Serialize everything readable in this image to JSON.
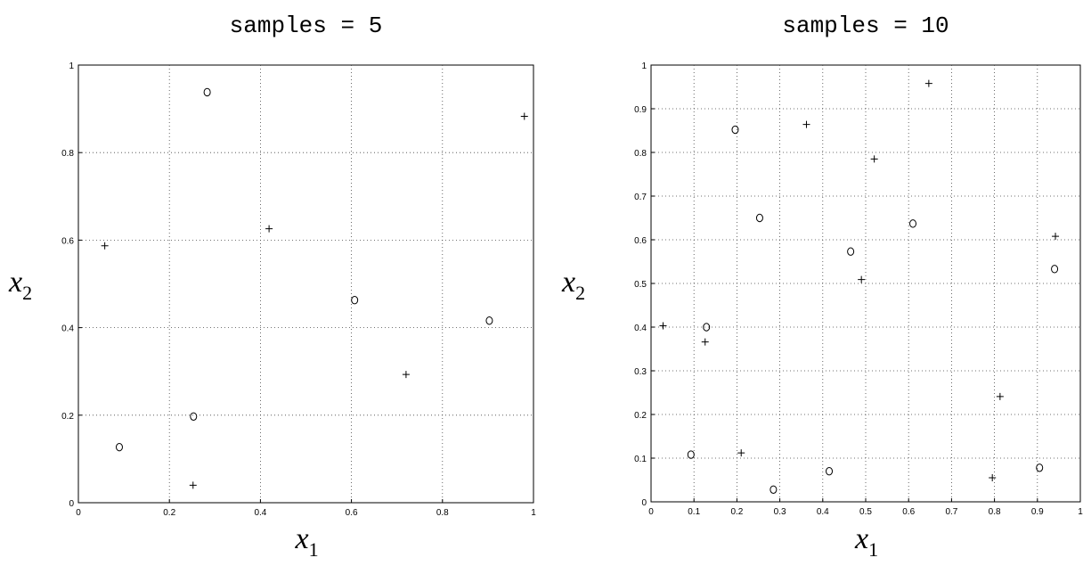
{
  "chart_data": [
    {
      "type": "scatter",
      "title": "samples = 5",
      "xlabel": "x",
      "xlabel_sub": "1",
      "ylabel": "x",
      "ylabel_sub": "2",
      "xlim": [
        0,
        1
      ],
      "ylim": [
        0,
        1
      ],
      "xticks": [
        "0",
        "0.2",
        "0.4",
        "0.6",
        "0.8",
        "1"
      ],
      "yticks": [
        "0",
        "0.2",
        "0.4",
        "0.6",
        "0.8",
        "1"
      ],
      "grid": true,
      "series": [
        {
          "marker": "circle",
          "points": [
            [
              0.09,
              0.127
            ],
            [
              0.253,
              0.197
            ],
            [
              0.283,
              0.938
            ],
            [
              0.607,
              0.463
            ],
            [
              0.903,
              0.416
            ]
          ]
        },
        {
          "marker": "plus",
          "points": [
            [
              0.058,
              0.587
            ],
            [
              0.252,
              0.04
            ],
            [
              0.419,
              0.626
            ],
            [
              0.72,
              0.293
            ],
            [
              0.98,
              0.883
            ]
          ]
        }
      ]
    },
    {
      "type": "scatter",
      "title": "samples = 10",
      "xlabel": "x",
      "xlabel_sub": "1",
      "ylabel": "x",
      "ylabel_sub": "2",
      "xlim": [
        0,
        1
      ],
      "ylim": [
        0,
        1
      ],
      "xticks": [
        "0",
        "0.1",
        "0.2",
        "0.3",
        "0.4",
        "0.5",
        "0.6",
        "0.7",
        "0.8",
        "0.9",
        "1"
      ],
      "yticks": [
        "0",
        "0.1",
        "0.2",
        "0.3",
        "0.4",
        "0.5",
        "0.6",
        "0.7",
        "0.8",
        "0.9",
        "1"
      ],
      "grid": true,
      "series": [
        {
          "marker": "circle",
          "points": [
            [
              0.093,
              0.108
            ],
            [
              0.129,
              0.4
            ],
            [
              0.196,
              0.852
            ],
            [
              0.253,
              0.65
            ],
            [
              0.285,
              0.028
            ],
            [
              0.415,
              0.07
            ],
            [
              0.465,
              0.573
            ],
            [
              0.61,
              0.637
            ],
            [
              0.905,
              0.078
            ],
            [
              0.94,
              0.533
            ]
          ]
        },
        {
          "marker": "plus",
          "points": [
            [
              0.028,
              0.403
            ],
            [
              0.126,
              0.366
            ],
            [
              0.21,
              0.112
            ],
            [
              0.362,
              0.864
            ],
            [
              0.49,
              0.509
            ],
            [
              0.52,
              0.785
            ],
            [
              0.647,
              0.958
            ],
            [
              0.795,
              0.055
            ],
            [
              0.813,
              0.241
            ],
            [
              0.942,
              0.608
            ]
          ]
        }
      ]
    }
  ]
}
